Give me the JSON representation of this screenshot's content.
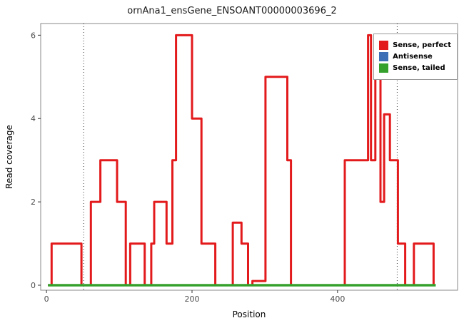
{
  "chart_data": {
    "type": "line",
    "subtype": "step-coverage",
    "title": "ornAna1_ensGene_ENSOANT00000003696_2",
    "xlabel": "Position",
    "ylabel": "Read coverage",
    "xlim": [
      -8,
      565
    ],
    "ylim": [
      -0.12,
      6.28
    ],
    "x_ticks": [
      0,
      200,
      400
    ],
    "y_ticks": [
      0,
      2,
      4,
      6
    ],
    "grid": false,
    "legend_position": "top-right-inside",
    "vlines": {
      "positions": [
        51,
        482
      ],
      "style": "dotted",
      "color": "#333333"
    },
    "series": [
      {
        "name": "Sense, perfect",
        "color": "#e31a1c",
        "points": [
          [
            2,
            0
          ],
          [
            7,
            0
          ],
          [
            7,
            1
          ],
          [
            48,
            1
          ],
          [
            48,
            0
          ],
          [
            57,
            0
          ],
          [
            61,
            0
          ],
          [
            61,
            2
          ],
          [
            74,
            2
          ],
          [
            74,
            3
          ],
          [
            97,
            3
          ],
          [
            97,
            2
          ],
          [
            109,
            2
          ],
          [
            109,
            0
          ],
          [
            115,
            0
          ],
          [
            115,
            1
          ],
          [
            135,
            1
          ],
          [
            135,
            0
          ],
          [
            144,
            0
          ],
          [
            144,
            1
          ],
          [
            148,
            1
          ],
          [
            148,
            2
          ],
          [
            165,
            2
          ],
          [
            165,
            1
          ],
          [
            173,
            1
          ],
          [
            173,
            3
          ],
          [
            178,
            3
          ],
          [
            178,
            6
          ],
          [
            200,
            6
          ],
          [
            200,
            4
          ],
          [
            213,
            4
          ],
          [
            213,
            1
          ],
          [
            232,
            1
          ],
          [
            232,
            0
          ],
          [
            256,
            0
          ],
          [
            256,
            1.5
          ],
          [
            268,
            1.5
          ],
          [
            268,
            1
          ],
          [
            277,
            1
          ],
          [
            277,
            0
          ],
          [
            283,
            0
          ],
          [
            283,
            0.1
          ],
          [
            301,
            0.1
          ],
          [
            301,
            5
          ],
          [
            331,
            5
          ],
          [
            331,
            3
          ],
          [
            336,
            3
          ],
          [
            336,
            0
          ],
          [
            410,
            0
          ],
          [
            410,
            3
          ],
          [
            442,
            3
          ],
          [
            442,
            6
          ],
          [
            446,
            6
          ],
          [
            446,
            3
          ],
          [
            452,
            3
          ],
          [
            452,
            5
          ],
          [
            459,
            5
          ],
          [
            459,
            2
          ],
          [
            464,
            2
          ],
          [
            464,
            4.1
          ],
          [
            472,
            4.1
          ],
          [
            472,
            3
          ],
          [
            483,
            3
          ],
          [
            483,
            1
          ],
          [
            493,
            1
          ],
          [
            493,
            0
          ],
          [
            505,
            0
          ],
          [
            505,
            1
          ],
          [
            532,
            1
          ],
          [
            532,
            0
          ]
        ]
      },
      {
        "name": "Antisense",
        "color": "#3c6fb6",
        "points": [
          [
            2,
            0
          ],
          [
            535,
            0
          ]
        ]
      },
      {
        "name": "Sense, tailed",
        "color": "#35a12c",
        "points": [
          [
            2,
            0
          ],
          [
            535,
            0
          ]
        ]
      }
    ],
    "legend": [
      {
        "label": "Sense, perfect",
        "color": "#e31a1c"
      },
      {
        "label": "Antisense",
        "color": "#3c6fb6"
      },
      {
        "label": "Sense, tailed",
        "color": "#35a12c"
      }
    ]
  }
}
